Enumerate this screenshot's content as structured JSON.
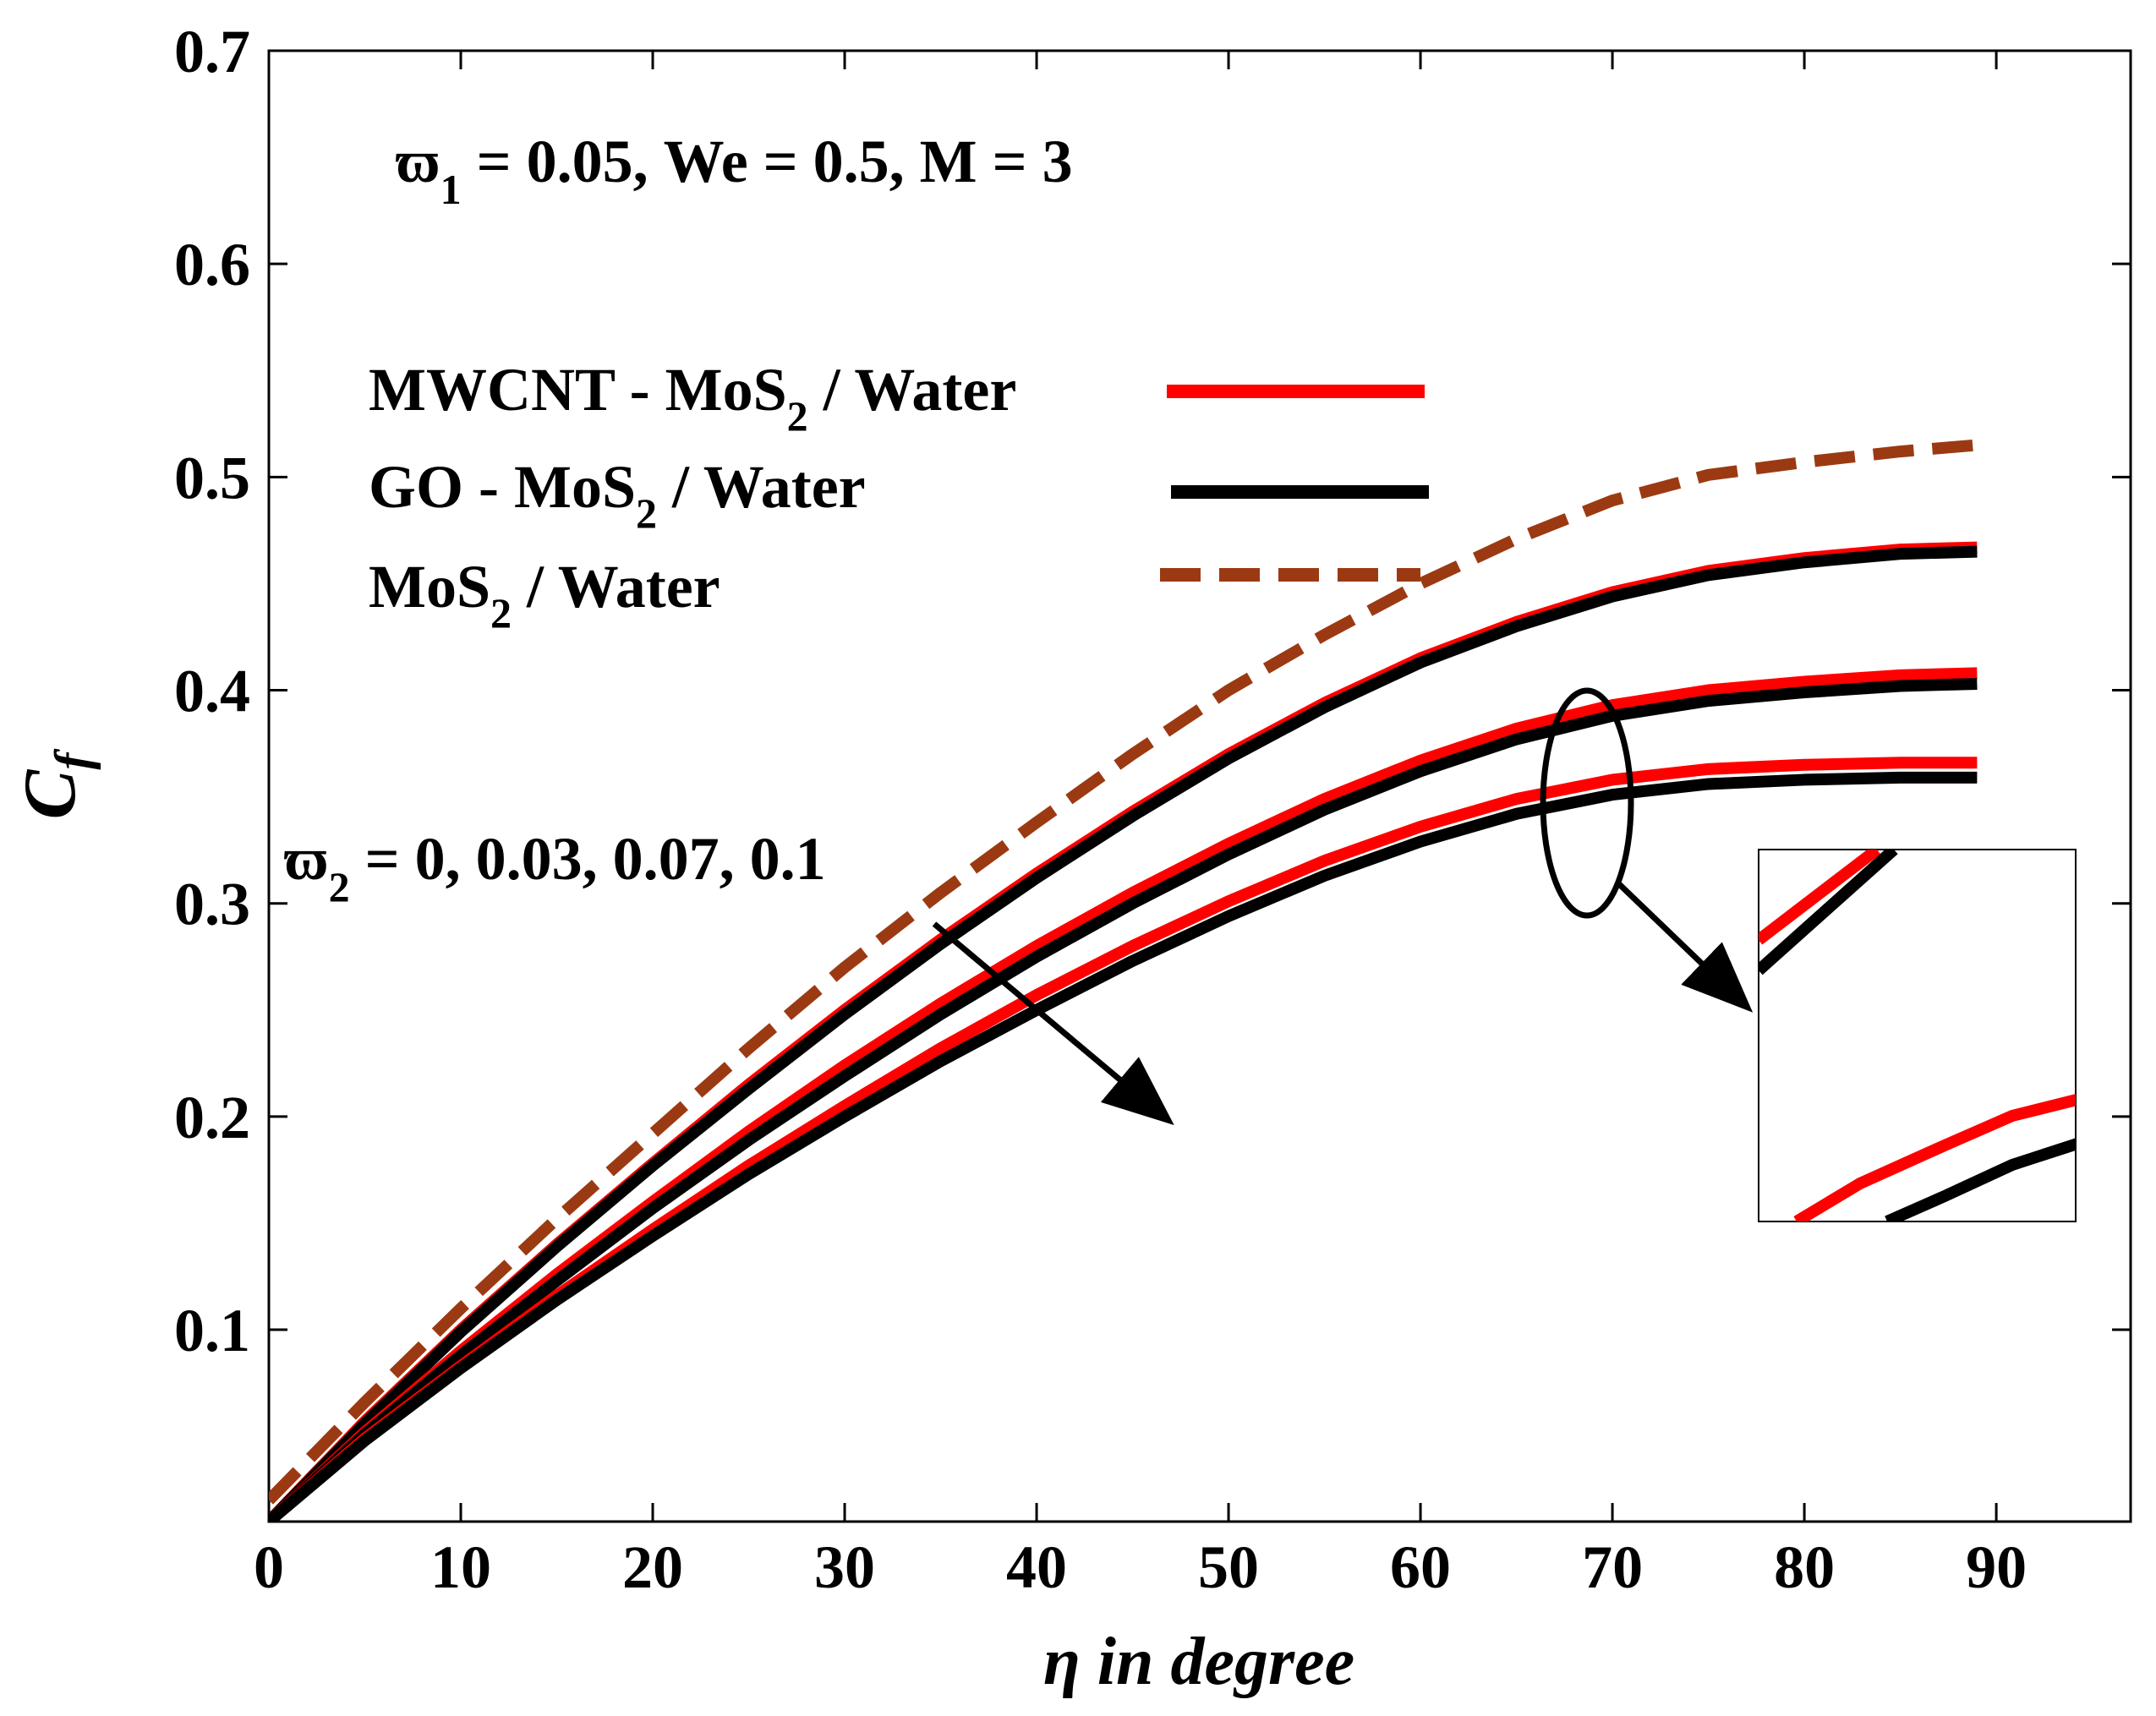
{
  "chart_data": {
    "type": "line",
    "title": "",
    "xlabel": "η in degree",
    "ylabel": "C_f",
    "xlim": [
      0,
      97
    ],
    "ylim": [
      0.01,
      0.7
    ],
    "xticks": [
      "0",
      "10",
      "20",
      "30",
      "40",
      "50",
      "60",
      "70",
      "80",
      "90"
    ],
    "yticks": [
      "0.1",
      "0.2",
      "0.3",
      "0.4",
      "0.5",
      "0.6",
      "0.7"
    ],
    "x": [
      0,
      5,
      10,
      15,
      20,
      25,
      30,
      35,
      40,
      45,
      50,
      55,
      60,
      65,
      70,
      75,
      80,
      85,
      89
    ],
    "series": [
      {
        "name": "MoS2 / Water",
        "color": "#9b3a12",
        "dash": true,
        "values": [
          0.02,
          0.066,
          0.11,
          0.152,
          0.192,
          0.232,
          0.27,
          0.305,
          0.338,
          0.37,
          0.4,
          0.426,
          0.45,
          0.471,
          0.489,
          0.501,
          0.507,
          0.512,
          0.515
        ]
      },
      {
        "name": "MWCNT - MoS2 / Water (ϖ2 = 0)",
        "color": "#ff0000",
        "values": [
          0.01,
          0.057,
          0.1,
          0.14,
          0.178,
          0.215,
          0.25,
          0.283,
          0.314,
          0.343,
          0.37,
          0.394,
          0.415,
          0.432,
          0.446,
          0.456,
          0.462,
          0.466,
          0.467
        ]
      },
      {
        "name": "GO - MoS2 / Water (ϖ2 = 0)",
        "color": "#000000",
        "values": [
          0.01,
          0.056,
          0.099,
          0.139,
          0.177,
          0.213,
          0.248,
          0.281,
          0.312,
          0.341,
          0.368,
          0.392,
          0.413,
          0.43,
          0.444,
          0.454,
          0.46,
          0.464,
          0.465
        ]
      },
      {
        "name": "MWCNT - MoS2 / Water (ϖ2 = 0.07)",
        "color": "#ff0000",
        "values": [
          0.01,
          0.052,
          0.09,
          0.126,
          0.16,
          0.193,
          0.224,
          0.253,
          0.28,
          0.305,
          0.328,
          0.349,
          0.367,
          0.382,
          0.393,
          0.4,
          0.404,
          0.407,
          0.408
        ]
      },
      {
        "name": "GO - MoS2 / Water (ϖ2 = 0.07)",
        "color": "#000000",
        "values": [
          0.01,
          0.051,
          0.088,
          0.123,
          0.157,
          0.189,
          0.219,
          0.248,
          0.275,
          0.3,
          0.323,
          0.344,
          0.362,
          0.377,
          0.388,
          0.395,
          0.399,
          0.402,
          0.403
        ]
      },
      {
        "name": "MWCNT - MoS2 / Water (ϖ2 = 0.1)",
        "color": "#ff0000",
        "values": [
          0.01,
          0.049,
          0.083,
          0.116,
          0.147,
          0.177,
          0.205,
          0.232,
          0.257,
          0.28,
          0.301,
          0.32,
          0.336,
          0.349,
          0.358,
          0.363,
          0.365,
          0.366,
          0.366
        ]
      },
      {
        "name": "GO - MoS2 / Water (ϖ2 = 0.1)",
        "color": "#000000",
        "values": [
          0.01,
          0.048,
          0.082,
          0.114,
          0.144,
          0.173,
          0.2,
          0.226,
          0.25,
          0.273,
          0.294,
          0.313,
          0.329,
          0.342,
          0.351,
          0.356,
          0.358,
          0.359,
          0.359
        ]
      }
    ],
    "legend": {
      "placement": "top-left",
      "entries": [
        {
          "base": "MWCNT - MoS",
          "sub": "2",
          "rest": " / Water",
          "color": "#ff0000",
          "dash": false
        },
        {
          "base": "GO - MoS",
          "sub": "2",
          "rest": " / Water",
          "color": "#000000",
          "dash": false
        },
        {
          "base": "MoS",
          "sub": "2",
          "rest": " / Water",
          "color": "#9b3a12",
          "dash": true
        }
      ]
    },
    "annotations": {
      "params": {
        "sym": "ϖ",
        "sub": "1",
        "rest": " = 0.05, We = 0.5, M = 3"
      },
      "omega2": {
        "sym": "ϖ",
        "sub": "2",
        "rest": " = 0, 0.03, 0.07, 0.1"
      },
      "arrow_note": "increasing ϖ2"
    }
  }
}
